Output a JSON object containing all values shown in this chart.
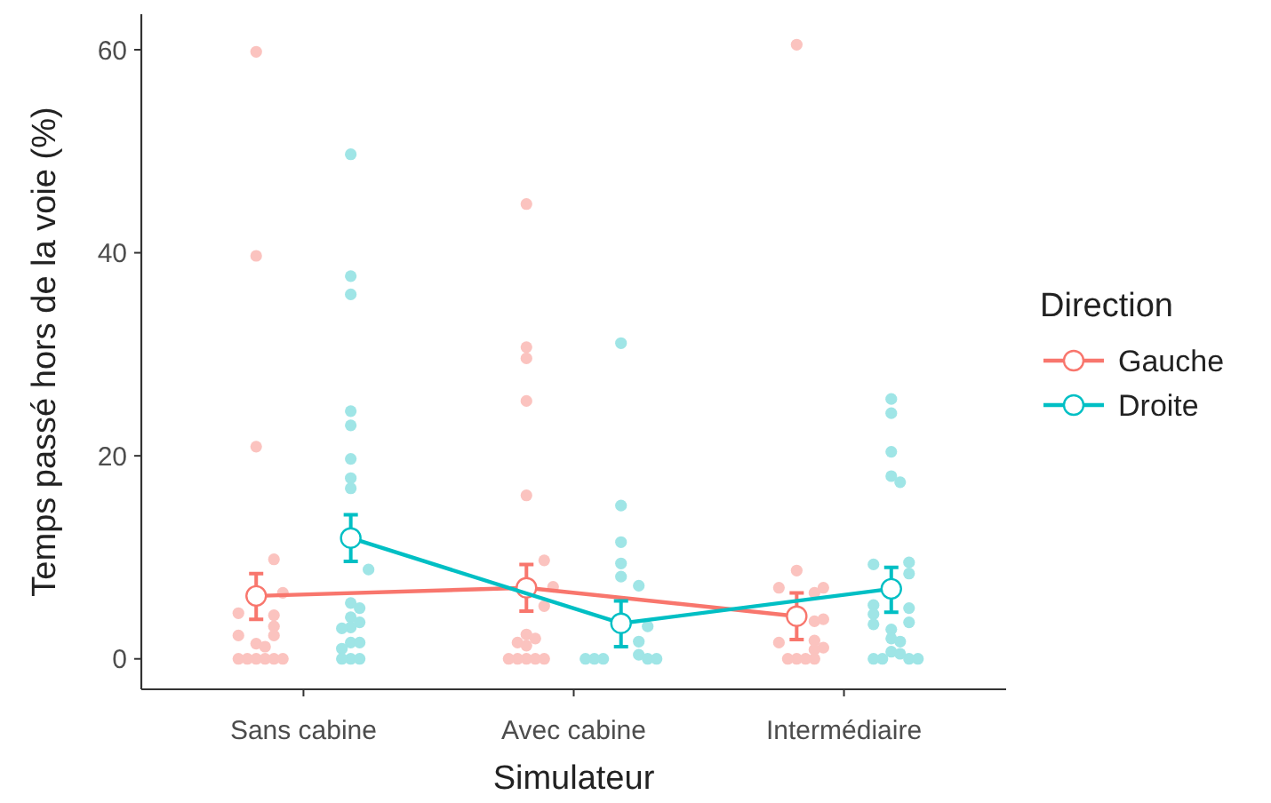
{
  "chart_data": {
    "type": "line",
    "xlabel": "Simulateur",
    "ylabel": "Temps passé hors de la voie (%)",
    "legend_title": "Direction",
    "legend": "right",
    "grid": false,
    "categories": [
      "Sans cabine",
      "Avec cabine",
      "Intermédiaire"
    ],
    "ylim": [
      -3,
      63.5
    ],
    "yticks": [
      0,
      20,
      40,
      60
    ],
    "series": [
      {
        "type": "scatter",
        "color": "#fbc3bf",
        "x": [
          "Sans cabine",
          "Sans cabine",
          "Sans cabine",
          "Sans cabine",
          "Sans cabine",
          "Sans cabine",
          "Sans cabine",
          "Sans cabine",
          "Sans cabine",
          "Sans cabine",
          "Sans cabine",
          "Sans cabine",
          "Sans cabine",
          "Sans cabine",
          "Sans cabine",
          "Sans cabine",
          "Sans cabine",
          "Sans cabine",
          "Avec cabine",
          "Avec cabine",
          "Avec cabine",
          "Avec cabine",
          "Avec cabine",
          "Avec cabine",
          "Avec cabine",
          "Avec cabine",
          "Avec cabine",
          "Avec cabine",
          "Avec cabine",
          "Avec cabine",
          "Avec cabine",
          "Avec cabine",
          "Avec cabine",
          "Avec cabine",
          "Avec cabine",
          "Intermédiaire",
          "Intermédiaire",
          "Intermédiaire",
          "Intermédiaire",
          "Intermédiaire",
          "Intermédiaire",
          "Intermédiaire",
          "Intermédiaire",
          "Intermédiaire",
          "Intermédiaire",
          "Intermédiaire",
          "Intermédiaire",
          "Intermédiaire",
          "Intermédiaire",
          "Intermédiaire"
        ],
        "values": [
          59.8,
          39.7,
          20.9,
          9.8,
          6.5,
          4.3,
          4.5,
          3.2,
          2.3,
          2.3,
          1.5,
          1.2,
          0,
          0,
          0,
          0,
          0,
          0,
          44.8,
          30.7,
          29.6,
          25.4,
          16.1,
          9.7,
          7.1,
          5.2,
          2.4,
          2.0,
          1.6,
          1.3,
          0,
          0,
          0,
          0,
          0,
          60.5,
          8.7,
          6.5,
          7.0,
          7.0,
          3.7,
          3.9,
          1.8,
          1.6,
          1.1,
          0.9,
          0,
          0,
          0,
          0
        ]
      },
      {
        "type": "scatter",
        "color": "#9fe5e6",
        "x": [
          "Sans cabine",
          "Sans cabine",
          "Sans cabine",
          "Sans cabine",
          "Sans cabine",
          "Sans cabine",
          "Sans cabine",
          "Sans cabine",
          "Sans cabine",
          "Sans cabine",
          "Sans cabine",
          "Sans cabine",
          "Sans cabine",
          "Sans cabine",
          "Sans cabine",
          "Sans cabine",
          "Sans cabine",
          "Sans cabine",
          "Sans cabine",
          "Sans cabine",
          "Sans cabine",
          "Avec cabine",
          "Avec cabine",
          "Avec cabine",
          "Avec cabine",
          "Avec cabine",
          "Avec cabine",
          "Avec cabine",
          "Avec cabine",
          "Avec cabine",
          "Avec cabine",
          "Avec cabine",
          "Avec cabine",
          "Avec cabine",
          "Avec cabine",
          "Intermédiaire",
          "Intermédiaire",
          "Intermédiaire",
          "Intermédiaire",
          "Intermédiaire",
          "Intermédiaire",
          "Intermédiaire",
          "Intermédiaire",
          "Intermédiaire",
          "Intermédiaire",
          "Intermédiaire",
          "Intermédiaire",
          "Intermédiaire",
          "Intermédiaire",
          "Intermédiaire",
          "Intermédiaire",
          "Intermédiaire",
          "Intermédiaire",
          "Intermédiaire",
          "Intermédiaire",
          "Intermédiaire",
          "Intermédiaire"
        ],
        "values": [
          49.7,
          37.7,
          35.9,
          24.4,
          23.0,
          19.7,
          17.8,
          16.8,
          8.8,
          5.5,
          5.0,
          4.1,
          3.6,
          3.1,
          3.0,
          1.6,
          1.6,
          1.0,
          0,
          0,
          0,
          31.1,
          15.1,
          11.5,
          9.4,
          8.1,
          7.2,
          3.2,
          1.7,
          0.4,
          0,
          0,
          0,
          0,
          0,
          25.6,
          24.2,
          20.4,
          18.0,
          17.4,
          9.5,
          8.4,
          9.3,
          5.0,
          5.3,
          4.4,
          3.6,
          3.4,
          2.9,
          2.0,
          1.7,
          0.7,
          0.5,
          0,
          0,
          0,
          0
        ]
      },
      {
        "name": "Gauche",
        "color": "#f8766d",
        "marker": "circle",
        "line_style": "solid",
        "values": [
          6.2,
          7.0,
          4.2
        ],
        "errors": [
          [
            3.9,
            8.4
          ],
          [
            4.7,
            9.3
          ],
          [
            1.9,
            6.5
          ]
        ]
      },
      {
        "name": "Droite",
        "color": "#00bfc4",
        "marker": "circle",
        "line_style": "solid",
        "values": [
          11.9,
          3.5,
          6.9
        ],
        "errors": [
          [
            9.6,
            14.2
          ],
          [
            1.2,
            5.7
          ],
          [
            4.6,
            9.0
          ]
        ]
      }
    ]
  }
}
